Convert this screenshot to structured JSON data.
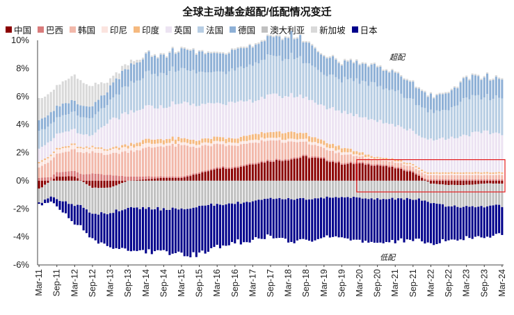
{
  "chart_data": {
    "type": "bar",
    "stacked": true,
    "title": "全球主动基金超配/低配情况变迁",
    "xlabel": "",
    "ylabel": "",
    "ylim": [
      -6,
      10
    ],
    "yticks": [
      "-6%",
      "-4%",
      "-2%",
      "0%",
      "2%",
      "4%",
      "6%",
      "8%",
      "10%"
    ],
    "ytick_values": [
      -6,
      -4,
      -2,
      0,
      2,
      4,
      6,
      8,
      10
    ],
    "x_tick_labels": [
      "Mar-11",
      "Sep-11",
      "Mar-12",
      "Sep-12",
      "Mar-13",
      "Sep-13",
      "Mar-14",
      "Sep-14",
      "Mar-15",
      "Sep-15",
      "Mar-16",
      "Sep-16",
      "Mar-17",
      "Sep-17",
      "Mar-18",
      "Sep-18",
      "Mar-19",
      "Sep-19",
      "Mar-20",
      "Sep-20",
      "Mar-21",
      "Sep-21",
      "Mar-22",
      "Sep-22",
      "Mar-23",
      "Sep-23",
      "Mar-24"
    ],
    "annotations": {
      "overweight": "超配",
      "underweight": "低配"
    },
    "highlight_box": {
      "x_start": "Mar-20",
      "x_end": "Mar-24",
      "y_range": [
        -0.8,
        1.5
      ]
    },
    "sample_step_months": 6,
    "note": "values sampled every 6 months (one per tick label), percent of portfolio",
    "series": [
      {
        "name": "中国",
        "color": "#8b0000",
        "values": [
          -0.6,
          0.3,
          0.3,
          -0.5,
          -0.5,
          0.0,
          0.1,
          0.2,
          0.2,
          0.5,
          0.9,
          0.9,
          1.2,
          1.4,
          1.5,
          1.7,
          1.5,
          1.2,
          1.2,
          1.1,
          0.9,
          0.6,
          -0.2,
          -0.3,
          -0.3,
          -0.2,
          -0.2
        ]
      },
      {
        "name": "巴西",
        "color": "#d97b7b",
        "values": [
          0.2,
          0.3,
          0.4,
          0.5,
          0.4,
          0.3,
          0.2,
          0.1,
          0.1,
          0.1,
          0.1,
          0.1,
          0.1,
          0.1,
          0.1,
          0.1,
          0.1,
          0.1,
          0.1,
          0.1,
          0.1,
          0.1,
          0.1,
          0.1,
          0.1,
          0.1,
          0.1
        ]
      },
      {
        "name": "韩国",
        "color": "#f2b8aa",
        "values": [
          0.8,
          1.3,
          1.5,
          1.5,
          1.5,
          1.8,
          2.0,
          2.2,
          2.2,
          1.8,
          1.6,
          1.5,
          1.4,
          1.4,
          1.2,
          0.9,
          0.7,
          0.6,
          0.4,
          0.3,
          0.3,
          0.3,
          0.3,
          0.3,
          0.3,
          0.3,
          0.3
        ]
      },
      {
        "name": "印尼",
        "color": "#fbe4df",
        "values": [
          0.3,
          0.3,
          0.3,
          0.3,
          0.3,
          0.3,
          0.3,
          0.2,
          0.2,
          0.2,
          0.2,
          0.2,
          0.2,
          0.2,
          0.2,
          0.2,
          0.2,
          0.2,
          0.1,
          0.1,
          0.1,
          0.1,
          0.1,
          0.1,
          0.1,
          0.1,
          0.1
        ]
      },
      {
        "name": "印度",
        "color": "#f5b97f",
        "values": [
          0.1,
          0.1,
          0.1,
          0.1,
          0.1,
          0.2,
          0.3,
          0.3,
          0.3,
          0.3,
          0.3,
          0.3,
          0.4,
          0.4,
          0.5,
          0.4,
          0.3,
          0.3,
          0.2,
          0.1,
          0.1,
          0.1,
          0.1,
          0.1,
          0.1,
          0.1,
          0.1
        ]
      },
      {
        "name": "英国",
        "color": "#ece3f2",
        "values": [
          1.0,
          1.0,
          1.0,
          0.8,
          2.0,
          2.2,
          2.3,
          2.3,
          2.5,
          2.5,
          2.5,
          2.5,
          2.4,
          2.6,
          2.6,
          2.6,
          2.5,
          2.5,
          2.6,
          2.6,
          2.5,
          2.3,
          2.4,
          2.4,
          2.7,
          2.8,
          2.8
        ]
      },
      {
        "name": "法国",
        "color": "#b7cde3",
        "values": [
          1.2,
          1.2,
          1.2,
          1.2,
          1.4,
          2.0,
          2.3,
          2.4,
          2.4,
          2.3,
          2.2,
          2.3,
          2.6,
          2.8,
          2.8,
          2.5,
          2.3,
          2.3,
          2.5,
          2.6,
          2.4,
          2.2,
          2.0,
          2.1,
          2.6,
          2.5,
          2.5
        ]
      },
      {
        "name": "德国",
        "color": "#8eb0d6",
        "values": [
          0.8,
          0.8,
          0.8,
          0.8,
          1.0,
          1.3,
          1.3,
          1.3,
          1.4,
          1.4,
          1.3,
          1.4,
          1.3,
          1.4,
          1.5,
          1.4,
          1.3,
          1.2,
          1.3,
          1.3,
          1.3,
          1.2,
          1.1,
          1.2,
          1.4,
          1.4,
          1.3
        ]
      },
      {
        "name": "澳大利亚",
        "color": "#c0c0c0",
        "values": [
          -1.0,
          -1.3,
          -1.8,
          -1.8,
          -1.8,
          -1.9,
          -2.0,
          -2.0,
          -2.0,
          -1.8,
          -1.7,
          -1.6,
          -1.5,
          -1.3,
          -1.3,
          -1.3,
          -1.2,
          -1.2,
          -1.2,
          -1.3,
          -1.3,
          -1.3,
          -1.4,
          -1.5,
          -1.6,
          -1.6,
          -1.6
        ]
      },
      {
        "name": "新加坡",
        "color": "#d9d9d9",
        "values": [
          1.5,
          1.5,
          1.8,
          1.5,
          0.5,
          0.3,
          0.1,
          0.1,
          0.1,
          0.1,
          0.1,
          0.1,
          0.1,
          0.1,
          0.1,
          0.1,
          0.1,
          0.1,
          0.1,
          0.1,
          0.1,
          0.1,
          0.1,
          0.1,
          0.1,
          0.1,
          0.1
        ]
      },
      {
        "name": "日本",
        "color": "#00008b",
        "values": [
          -0.1,
          -0.5,
          -1.3,
          -1.8,
          -2.4,
          -3.0,
          -3.0,
          -3.0,
          -3.2,
          -3.4,
          -3.0,
          -2.8,
          -2.7,
          -2.7,
          -3.0,
          -2.9,
          -2.9,
          -3.0,
          -3.0,
          -3.0,
          -3.1,
          -2.9,
          -2.9,
          -2.5,
          -2.2,
          -2.2,
          -2.1
        ]
      }
    ]
  }
}
